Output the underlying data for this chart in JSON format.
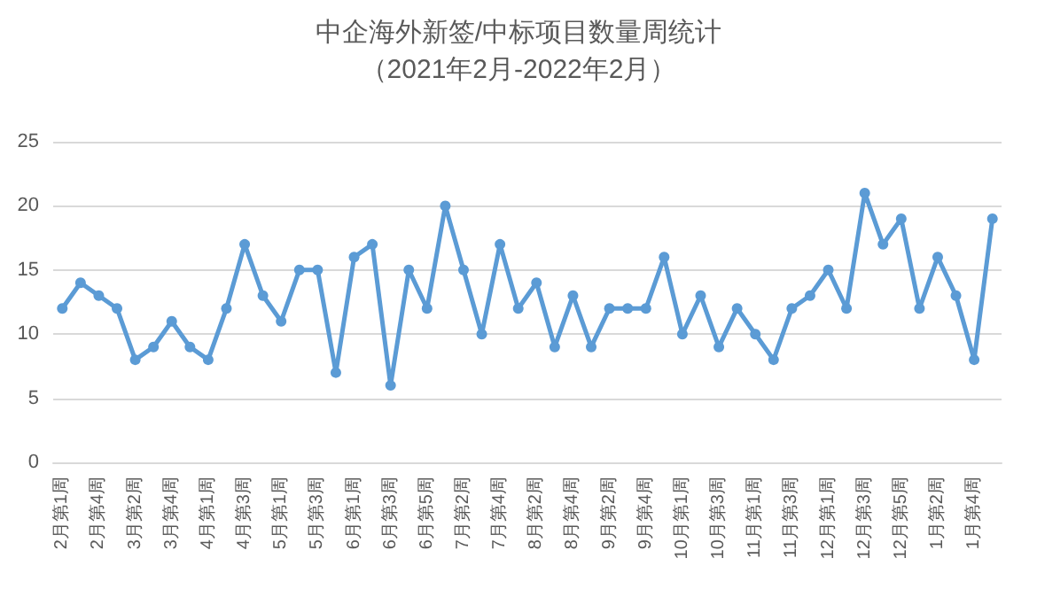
{
  "chart_data": {
    "type": "line",
    "title": "中企海外新签/中标项目数量周统计",
    "subtitle": "（2021年2月-2022年2月）",
    "categories": [
      "2月第1周",
      null,
      "2月第4周",
      null,
      "3月第2周",
      null,
      "3月第4周",
      null,
      "4月第1周",
      null,
      "4月第3周",
      null,
      "5月第1周",
      null,
      "5月第3周",
      null,
      "6月第1周",
      null,
      "6月第3周",
      null,
      "6月第5周",
      null,
      "7月第2周",
      null,
      "7月第4周",
      null,
      "8月第2周",
      null,
      "8月第4周",
      null,
      "9月第2周",
      null,
      "9月第4周",
      null,
      "10月第1周",
      null,
      "10月第3周",
      null,
      "11月第1周",
      null,
      "11月第3周",
      null,
      "12月第1周",
      null,
      "12月第3周",
      null,
      "12月第5周",
      null,
      "1月第2周",
      null,
      "1月第4周",
      null
    ],
    "series": [
      {
        "color": "#5b9bd5",
        "values": [
          12,
          14,
          13,
          12,
          8,
          9,
          11,
          9,
          8,
          12,
          17,
          13,
          11,
          15,
          15,
          7,
          16,
          17,
          6,
          15,
          12,
          20,
          15,
          10,
          17,
          12,
          14,
          9,
          13,
          9,
          12,
          12,
          12,
          16,
          10,
          13,
          9,
          12,
          10,
          8,
          12,
          13,
          15,
          12,
          21,
          17,
          19,
          12,
          16,
          13,
          8,
          19
        ]
      }
    ],
    "ylim": [
      0,
      25
    ],
    "yticks": [
      0,
      5,
      10,
      15,
      20,
      25
    ],
    "grid": "y",
    "marker": "circle",
    "line_style": "solid"
  }
}
